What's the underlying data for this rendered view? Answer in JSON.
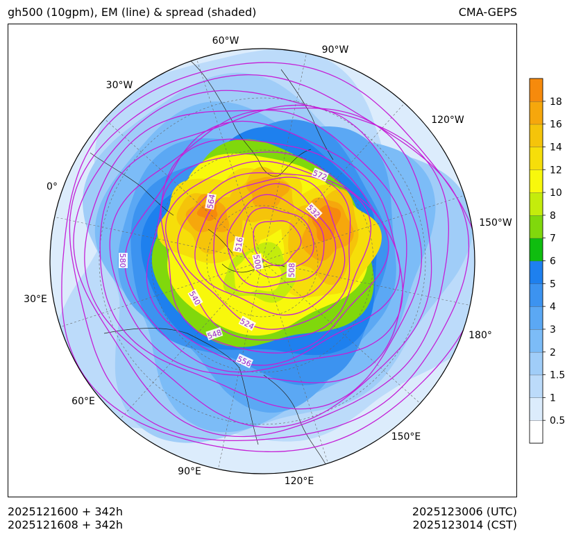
{
  "header": {
    "title_left": "gh500 (10gpm), EM (line) & spread (shaded)",
    "title_right": "CMA-GEPS"
  },
  "footer": {
    "init_utc": "2025121600 + 342h",
    "init_cst": "2025121608 + 342h",
    "valid_utc": "2025123006 (UTC)",
    "valid_cst": "2025123014 (CST)"
  },
  "chart_data": {
    "type": "heatmap",
    "projection": "north-polar-stereographic",
    "title": "gh500 (10gpm), EM (line) & spread (shaded)",
    "longitude_labels": [
      "60°W",
      "90°W",
      "30°W",
      "120°W",
      "0°",
      "150°W",
      "30°E",
      "180°",
      "60°E",
      "150°E",
      "90°E",
      "120°E"
    ],
    "colorbar": {
      "ticks": [
        "18",
        "16",
        "14",
        "12",
        "10",
        "8",
        "7",
        "6",
        "5",
        "4",
        "3",
        "2",
        "1.5",
        "1",
        "0.5"
      ],
      "levels": [
        0,
        0.5,
        1,
        1.5,
        2,
        3,
        4,
        5,
        6,
        7,
        8,
        10,
        12,
        14,
        16,
        18,
        20
      ],
      "colors": [
        "#ffffff",
        "#dcecfc",
        "#bcdbfa",
        "#a0cdf8",
        "#7cbcf7",
        "#5ba8f4",
        "#3c93f0",
        "#1e80ee",
        "#0fbd0f",
        "#80d80c",
        "#c4ec0c",
        "#f8f80c",
        "#f6de0a",
        "#f5c40a",
        "#f6a70c",
        "#f68a0c",
        "#f86c0c"
      ]
    },
    "contour_labels": [
      "572",
      "532",
      "564",
      "516",
      "500",
      "508",
      "580",
      "540",
      "524",
      "548",
      "556"
    ],
    "contour_color": "#c41fd6",
    "contour_levels": [
      500,
      508,
      516,
      524,
      532,
      540,
      548,
      556,
      564,
      572,
      580
    ]
  }
}
